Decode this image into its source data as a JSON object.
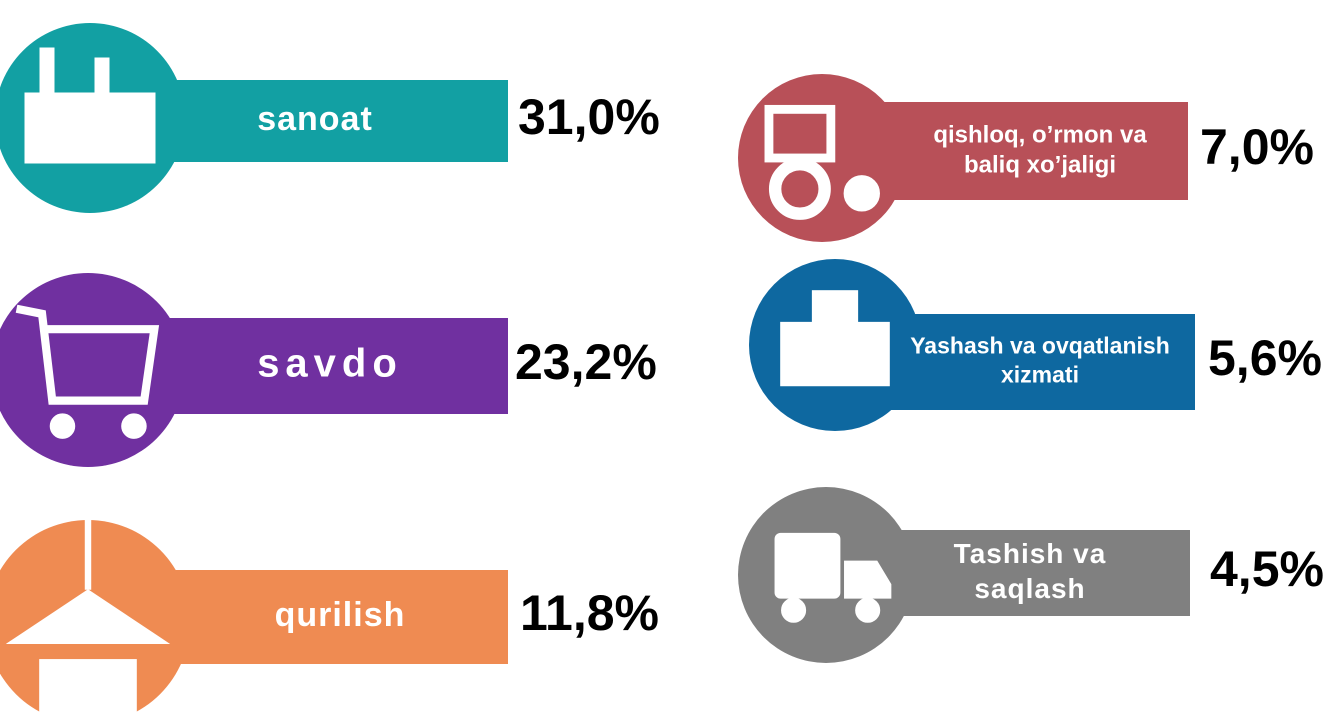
{
  "items": [
    {
      "label": [
        "sanoat"
      ],
      "value": "31,0%",
      "color": "#12a0a3"
    },
    {
      "label": [
        "savdo"
      ],
      "value": "23,2%",
      "color": "#7030a0"
    },
    {
      "label": [
        "qurilish"
      ],
      "value": "11,8%",
      "color": "#ef8b52"
    },
    {
      "label": [
        "qishloq, o’rmon  va",
        "baliq xo’jaligi"
      ],
      "value": "7,0%",
      "color": "#b85058"
    },
    {
      "label": [
        "Yashash va ovqatlanish",
        "xizmati"
      ],
      "value": "5,6%",
      "color": "#0e68a0"
    },
    {
      "label": [
        "Tashish va",
        "saqlash"
      ],
      "value": "4,5%",
      "color": "#808080"
    }
  ]
}
